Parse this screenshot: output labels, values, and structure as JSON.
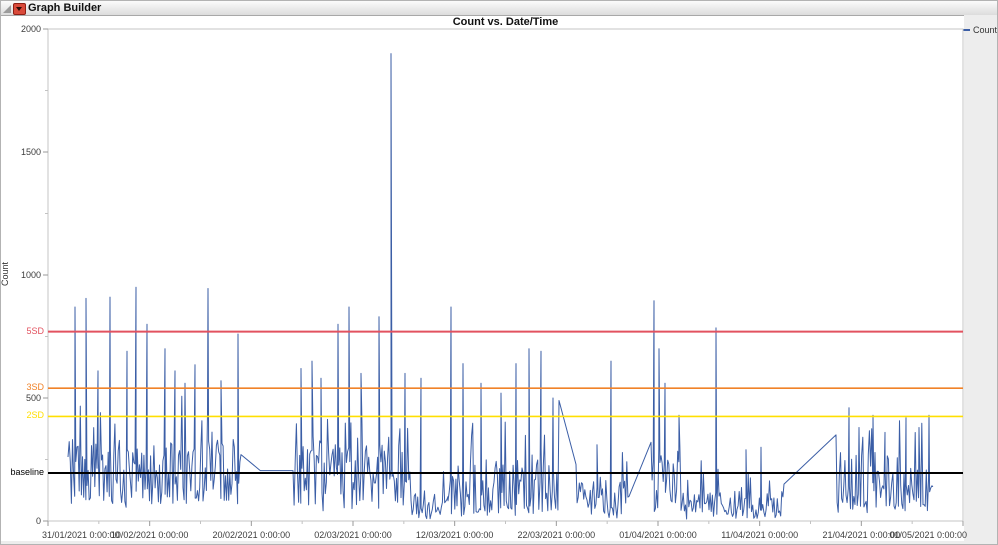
{
  "header": {
    "title": "Graph Builder"
  },
  "legend": {
    "position": "top-right",
    "entries": [
      {
        "label": "Count",
        "color": "#3b5ea6"
      }
    ]
  },
  "chart_data": {
    "type": "line",
    "title": "Count vs. Date/Time",
    "xlabel": "",
    "ylabel": "Count",
    "ylim": [
      0,
      2000
    ],
    "yticks": [
      0,
      500,
      1000,
      1500,
      2000
    ],
    "y_minor_ticks": [
      250,
      750,
      1250,
      1750
    ],
    "xticks": [
      "31/01/2021 0:00:00",
      "10/02/2021 0:00:00",
      "20/02/2021 0:00:00",
      "02/03/2021 0:00:00",
      "12/03/2021 0:00:00",
      "22/03/2021 0:00:00",
      "01/04/2021 0:00:00",
      "11/04/2021 0:00:00",
      "21/04/2021 0:00:00",
      "01/05/2021 0:00:00"
    ],
    "grid": false,
    "legend_position": "top-right",
    "reference_lines": [
      {
        "label": "5SD",
        "value": 770,
        "color": "#e2525f",
        "width": 2
      },
      {
        "label": "3SD",
        "value": 540,
        "color": "#f08228",
        "width": 1.6
      },
      {
        "label": "2SD",
        "value": 425,
        "color": "#ffdf00",
        "width": 1.6
      },
      {
        "label": "baseline",
        "value": 195,
        "color": "#000000",
        "width": 2
      }
    ],
    "series": [
      {
        "name": "Count",
        "color": "#3b5ea6",
        "description": "Dense noisy time series at ~1h sampling; fracs are fraction of x-range 31/01/2021-01/05/2021",
        "segments": [
          {
            "f0": 0.0219,
            "f1": 0.2109,
            "base": 200,
            "jitter": 130,
            "min": 40,
            "peak": 230,
            "peak_prob": 0.12,
            "dip_prob": 0.1,
            "dip_floor": 55,
            "start": 260,
            "end": 270
          },
          {
            "f0": 0.2678,
            "f1": 0.3967,
            "base": 185,
            "jitter": 125,
            "min": 25,
            "peak": 220,
            "peak_prob": 0.11,
            "dip_prob": 0.1,
            "dip_floor": 40,
            "start": 205
          },
          {
            "f0": 0.3967,
            "f1": 0.4372,
            "base": 70,
            "jitter": 60,
            "min": 3,
            "peak": 160,
            "peak_prob": 0.07,
            "dip_prob": 0.25,
            "dip_floor": 8
          },
          {
            "f0": 0.4372,
            "f1": 0.5585,
            "base": 140,
            "jitter": 110,
            "min": 10,
            "peak": 200,
            "peak_prob": 0.1,
            "dip_prob": 0.15,
            "dip_floor": 20,
            "end": 490
          },
          {
            "f0": 0.577,
            "f1": 0.635,
            "base": 100,
            "jitter": 85,
            "min": 8,
            "peak": 170,
            "peak_prob": 0.08,
            "dip_prob": 0.2,
            "dip_floor": 12,
            "start": 230,
            "end": 100
          },
          {
            "f0": 0.659,
            "f1": 0.6918,
            "base": 170,
            "jitter": 130,
            "min": 15,
            "peak": 200,
            "peak_prob": 0.1,
            "dip_prob": 0.12,
            "dip_floor": 25,
            "start": 320
          },
          {
            "f0": 0.6918,
            "f1": 0.8044,
            "base": 65,
            "jitter": 55,
            "min": 3,
            "peak": 150,
            "peak_prob": 0.07,
            "dip_prob": 0.22,
            "dip_floor": 8,
            "end": 150
          },
          {
            "f0": 0.8612,
            "f1": 0.9672,
            "base": 160,
            "jitter": 120,
            "min": 15,
            "peak": 180,
            "peak_prob": 0.11,
            "dip_prob": 0.12,
            "dip_floor": 25,
            "start": 350,
            "end": 140
          }
        ],
        "connector_points": [
          [
            0.232,
            205
          ]
        ],
        "spikes": [
          [
            0.0295,
            870
          ],
          [
            0.0415,
            905
          ],
          [
            0.0546,
            610
          ],
          [
            0.0678,
            910
          ],
          [
            0.0863,
            690
          ],
          [
            0.0962,
            950
          ],
          [
            0.1082,
            800
          ],
          [
            0.1279,
            700
          ],
          [
            0.1388,
            610
          ],
          [
            0.1497,
            560
          ],
          [
            0.1607,
            635
          ],
          [
            0.1749,
            945
          ],
          [
            0.1891,
            570
          ],
          [
            0.2077,
            760
          ],
          [
            0.2765,
            620
          ],
          [
            0.2885,
            650
          ],
          [
            0.2984,
            580
          ],
          [
            0.3169,
            800
          ],
          [
            0.329,
            870
          ],
          [
            0.3421,
            600
          ],
          [
            0.3617,
            830
          ],
          [
            0.3749,
            1900
          ],
          [
            0.3902,
            600
          ],
          [
            0.4077,
            580
          ],
          [
            0.4404,
            870
          ],
          [
            0.4536,
            640
          ],
          [
            0.4732,
            560
          ],
          [
            0.4951,
            520
          ],
          [
            0.5115,
            640
          ],
          [
            0.5257,
            700
          ],
          [
            0.5388,
            690
          ],
          [
            0.5519,
            500
          ],
          [
            0.6,
            310
          ],
          [
            0.6153,
            650
          ],
          [
            0.6623,
            895
          ],
          [
            0.6678,
            700
          ],
          [
            0.6743,
            560
          ],
          [
            0.6896,
            430
          ],
          [
            0.7301,
            785
          ],
          [
            0.7628,
            290
          ],
          [
            0.7792,
            300
          ],
          [
            0.8754,
            460
          ],
          [
            0.8863,
            380
          ],
          [
            0.9016,
            430
          ],
          [
            0.9148,
            360
          ],
          [
            0.9377,
            420
          ],
          [
            0.9519,
            380
          ],
          [
            0.9628,
            430
          ]
        ]
      }
    ]
  },
  "colors": {
    "series": "#3b5ea6",
    "plot_border": "#c6c6c6",
    "tick": "#9a9a9a",
    "margin_bg": "#ededed"
  }
}
